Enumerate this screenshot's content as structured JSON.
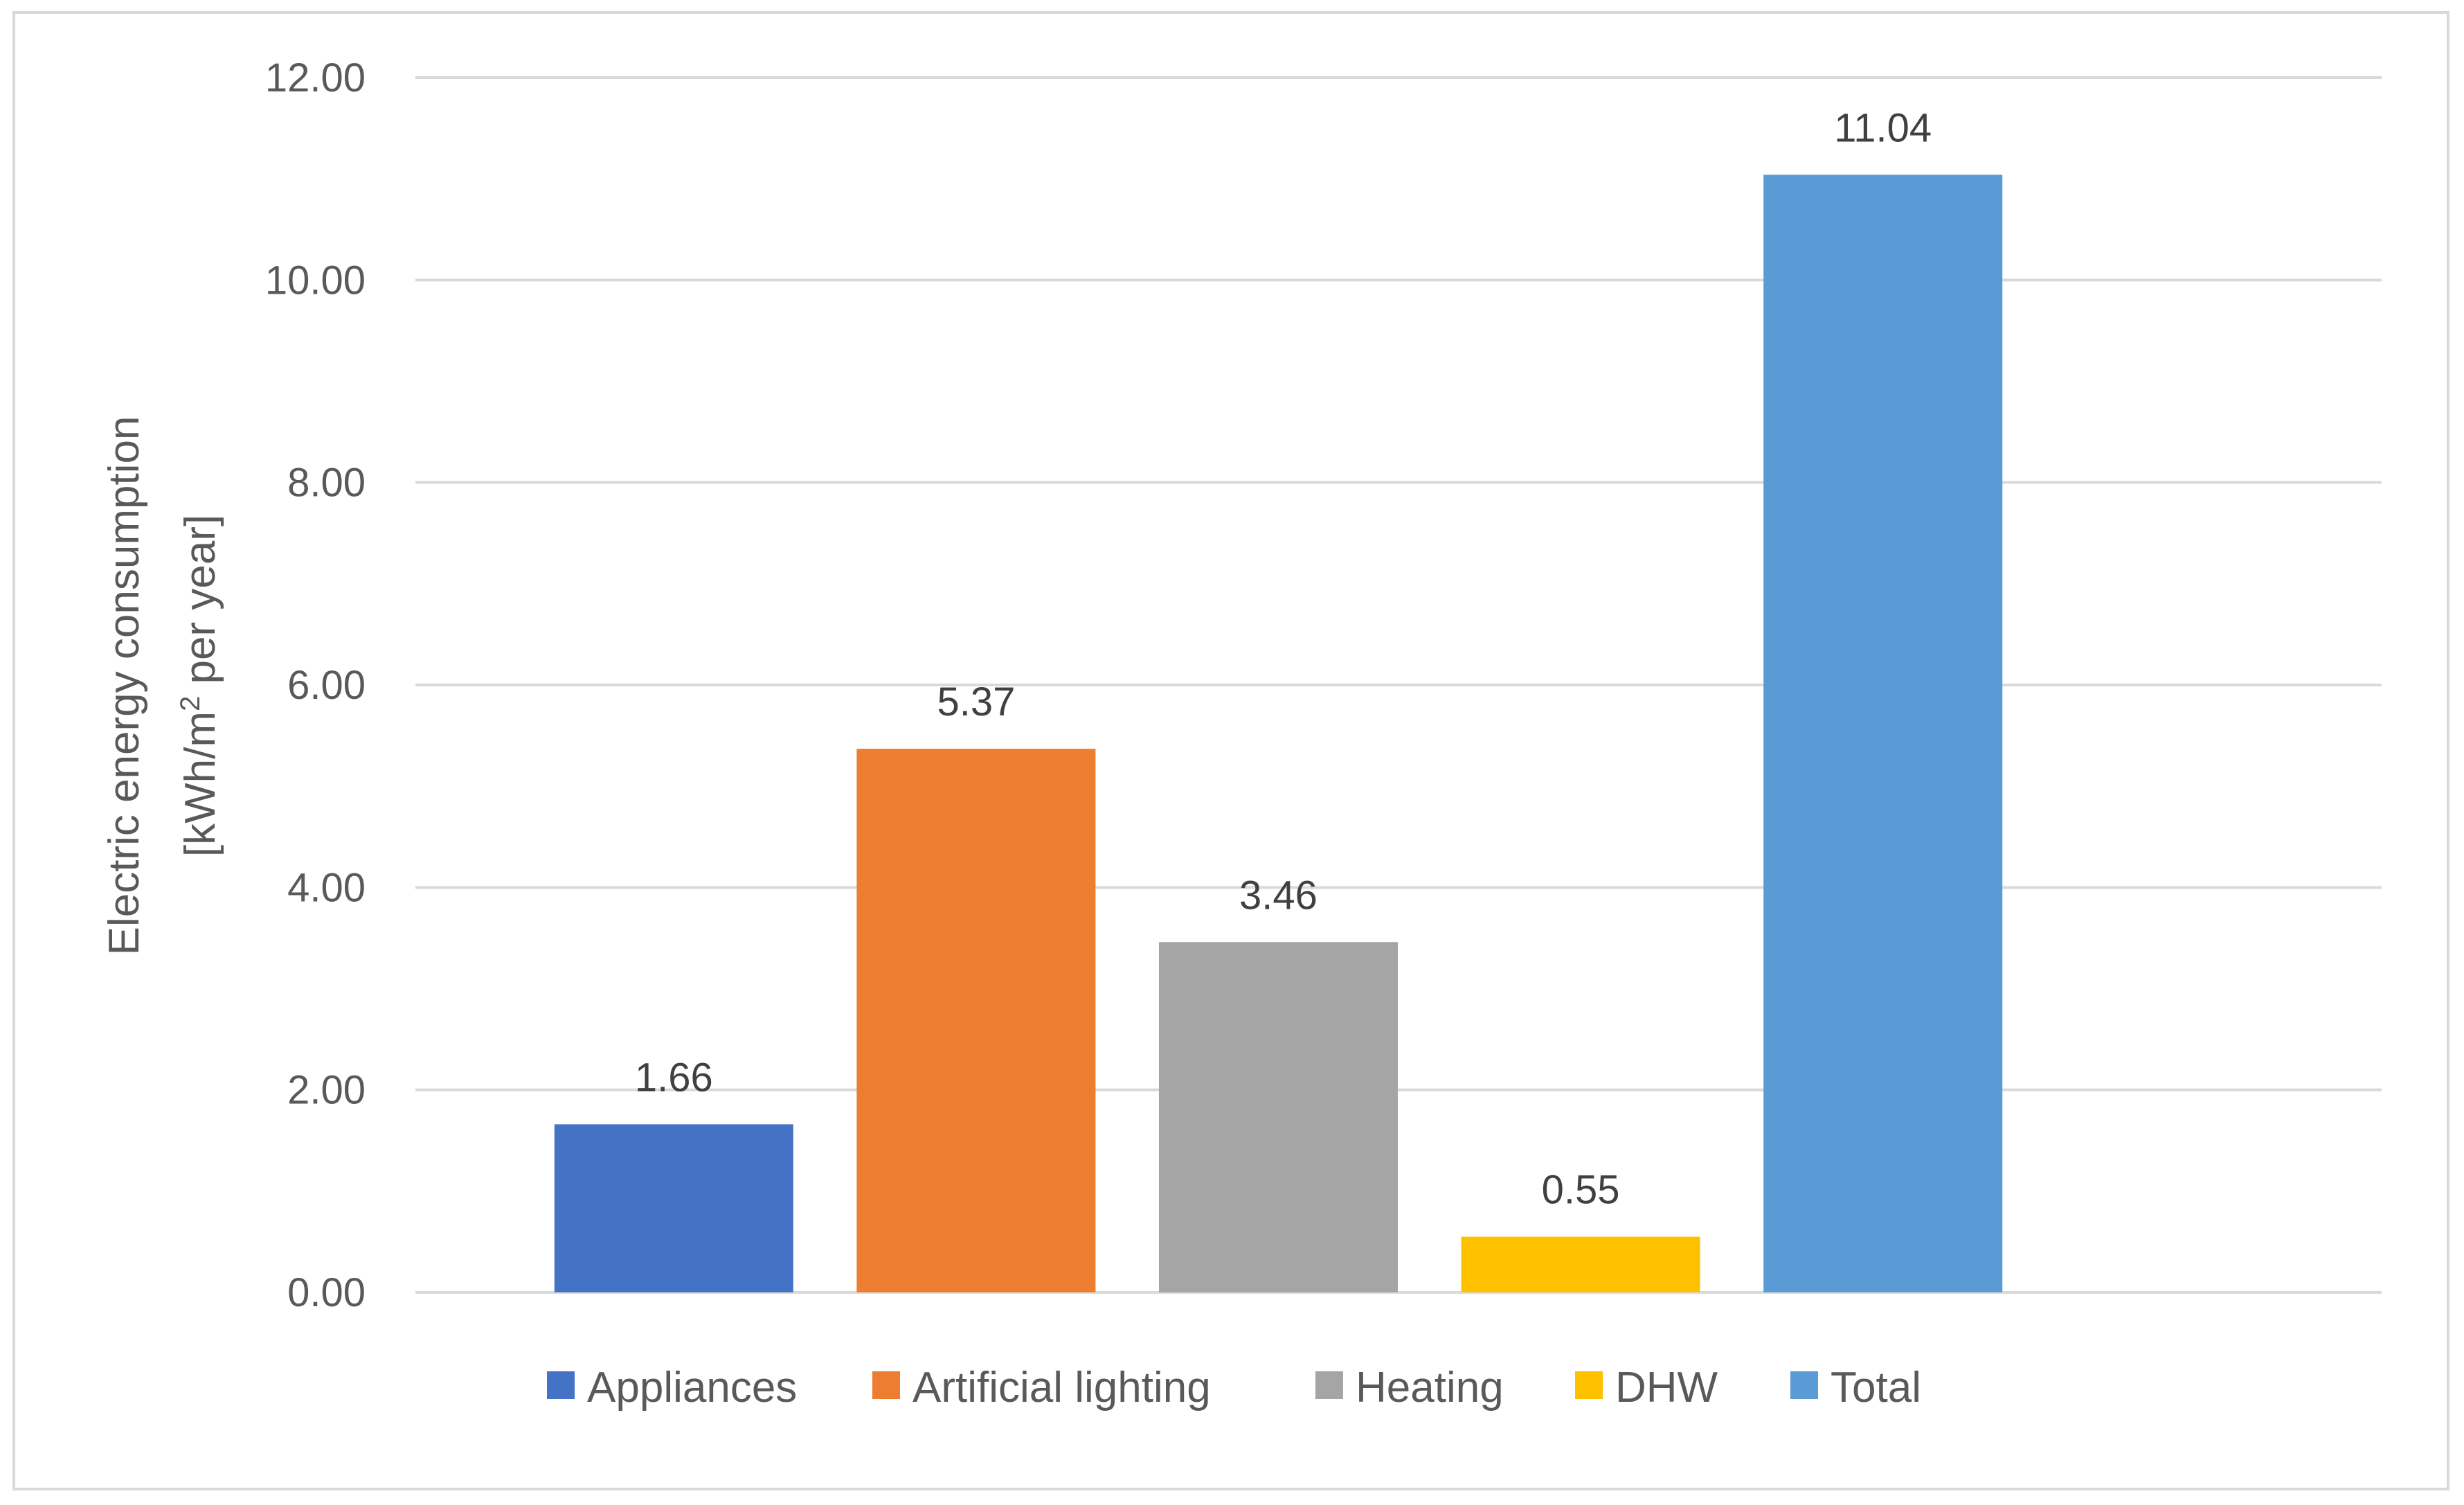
{
  "chart_data": {
    "type": "bar",
    "title": "",
    "xlabel": "",
    "ylabel_line1": "Electric energy consumption",
    "ylabel_line2_prefix": "[kWh/m",
    "ylabel_superscript": "2",
    "ylabel_line2_suffix": " per year]",
    "ylim": [
      0,
      12
    ],
    "yticks": [
      "0.00",
      "2.00",
      "4.00",
      "6.00",
      "8.00",
      "10.00",
      "12.00"
    ],
    "grid": true,
    "legend_position": "bottom",
    "series": [
      {
        "name": "Appliances",
        "value": 1.66,
        "label": "1.66",
        "color": "#4472c4"
      },
      {
        "name": "Artificial lighting",
        "value": 5.37,
        "label": "5.37",
        "color": "#ed7d31"
      },
      {
        "name": "Heating",
        "value": 3.46,
        "label": "3.46",
        "color": "#a5a5a5"
      },
      {
        "name": "DHW",
        "value": 0.55,
        "label": "0.55",
        "color": "#ffc000"
      },
      {
        "name": "Total",
        "value": 11.04,
        "label": "11.04",
        "color": "#5b9bd5"
      }
    ],
    "colors": {
      "grid": "#d9d9d9",
      "tick_text": "#595959",
      "data_label_text": "#404040"
    }
  }
}
